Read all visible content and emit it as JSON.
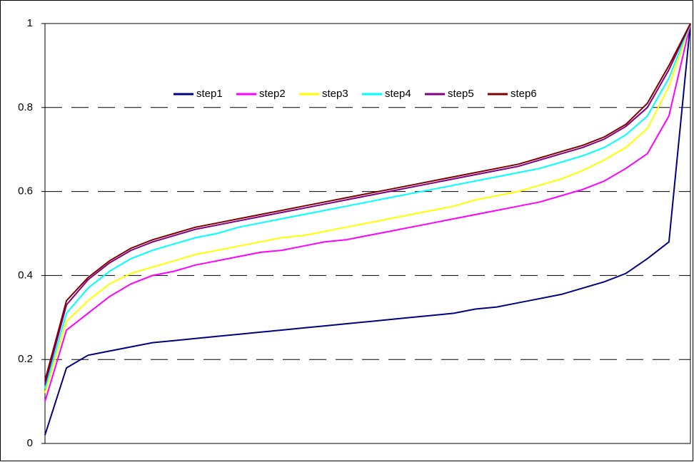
{
  "chart_data": {
    "type": "line",
    "categories": [
      null,
      null,
      null,
      null,
      null,
      null,
      null,
      null,
      null,
      null,
      null,
      null,
      null,
      null,
      null,
      null,
      null,
      null,
      null,
      null,
      null,
      null,
      null,
      null,
      null,
      null,
      null,
      null,
      null,
      null,
      null
    ],
    "ylim": [
      0,
      1
    ],
    "yticks": [
      0,
      0.2,
      0.4,
      0.6,
      0.8,
      1
    ],
    "grid": true,
    "legend": "top",
    "series": [
      {
        "name": "step1",
        "color": "#000080",
        "values": [
          0.02,
          0.18,
          0.21,
          0.22,
          0.23,
          0.24,
          0.245,
          0.25,
          0.255,
          0.26,
          0.265,
          0.27,
          0.275,
          0.28,
          0.285,
          0.29,
          0.295,
          0.3,
          0.305,
          0.31,
          0.32,
          0.325,
          0.335,
          0.345,
          0.355,
          0.37,
          0.385,
          0.405,
          0.44,
          0.48,
          1.0
        ]
      },
      {
        "name": "step2",
        "color": "#ff00ff",
        "values": [
          0.1,
          0.27,
          0.31,
          0.35,
          0.38,
          0.4,
          0.41,
          0.425,
          0.435,
          0.445,
          0.455,
          0.46,
          0.47,
          0.48,
          0.485,
          0.495,
          0.505,
          0.515,
          0.525,
          0.535,
          0.545,
          0.555,
          0.565,
          0.575,
          0.59,
          0.605,
          0.625,
          0.655,
          0.69,
          0.78,
          1.0
        ]
      },
      {
        "name": "step3",
        "color": "#ffff00",
        "values": [
          0.12,
          0.29,
          0.34,
          0.38,
          0.405,
          0.42,
          0.435,
          0.45,
          0.46,
          0.47,
          0.48,
          0.49,
          0.495,
          0.505,
          0.515,
          0.525,
          0.535,
          0.545,
          0.555,
          0.565,
          0.58,
          0.59,
          0.6,
          0.615,
          0.63,
          0.65,
          0.675,
          0.705,
          0.75,
          0.85,
          1.0
        ]
      },
      {
        "name": "step4",
        "color": "#00ffff",
        "values": [
          0.13,
          0.31,
          0.37,
          0.41,
          0.44,
          0.46,
          0.475,
          0.49,
          0.5,
          0.515,
          0.525,
          0.535,
          0.545,
          0.555,
          0.565,
          0.575,
          0.585,
          0.595,
          0.605,
          0.615,
          0.625,
          0.635,
          0.645,
          0.655,
          0.67,
          0.685,
          0.705,
          0.735,
          0.78,
          0.87,
          1.0
        ]
      },
      {
        "name": "step5",
        "color": "#800080",
        "values": [
          0.14,
          0.33,
          0.39,
          0.43,
          0.46,
          0.48,
          0.495,
          0.51,
          0.52,
          0.53,
          0.54,
          0.55,
          0.56,
          0.57,
          0.58,
          0.59,
          0.6,
          0.61,
          0.62,
          0.63,
          0.64,
          0.65,
          0.66,
          0.675,
          0.69,
          0.705,
          0.725,
          0.755,
          0.8,
          0.89,
          1.0
        ]
      },
      {
        "name": "step6",
        "color": "#800000",
        "values": [
          0.15,
          0.34,
          0.395,
          0.435,
          0.465,
          0.485,
          0.5,
          0.515,
          0.525,
          0.535,
          0.545,
          0.555,
          0.565,
          0.575,
          0.585,
          0.595,
          0.605,
          0.615,
          0.625,
          0.635,
          0.645,
          0.655,
          0.665,
          0.68,
          0.695,
          0.71,
          0.73,
          0.76,
          0.81,
          0.9,
          1.0
        ]
      }
    ]
  }
}
